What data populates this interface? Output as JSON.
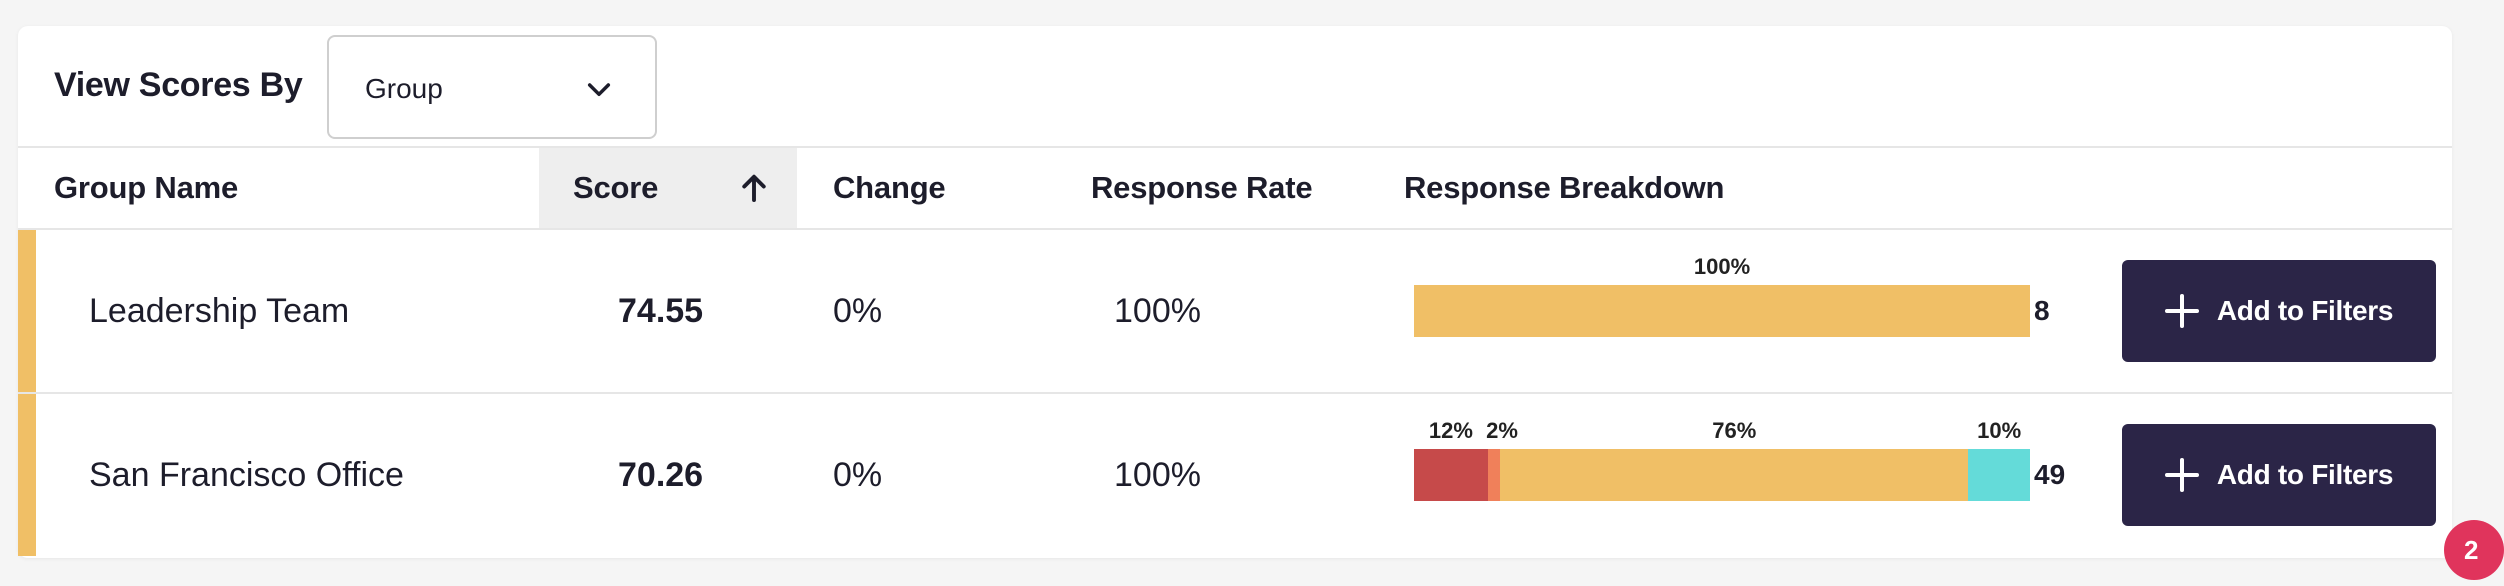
{
  "toolbar": {
    "title": "View Scores By",
    "dropdown": {
      "selected": "Group",
      "icon": "chevron-down-icon"
    }
  },
  "columns": {
    "group_name": "Group Name",
    "score": "Score",
    "change": "Change",
    "response_rate": "Response Rate",
    "response_breakdown": "Response Breakdown",
    "sort_icon": "arrow-up-icon"
  },
  "colors": {
    "accent_row": "#f0bf66",
    "unfavorable": "#c64a4a",
    "unfavorable_light": "#f0805a",
    "neutral": "#f0bf66",
    "favorable": "#64dbd9",
    "button_bg": "#2b2547",
    "badge": "#e0345c"
  },
  "rows": [
    {
      "name": "Leadership Team",
      "score": "74.55",
      "change": "0%",
      "response_rate": "100%",
      "count": "8",
      "button_label": "Add to Filters",
      "breakdown": [
        {
          "label": "100%",
          "value": 100,
          "color": "#f0bf66"
        }
      ]
    },
    {
      "name": "San Francisco Office",
      "score": "70.26",
      "change": "0%",
      "response_rate": "100%",
      "count": "49",
      "button_label": "Add to Filters",
      "breakdown": [
        {
          "label": "12%",
          "value": 12,
          "color": "#c64a4a"
        },
        {
          "label": "2%",
          "value": 2,
          "color": "#f0805a"
        },
        {
          "label": "76%",
          "value": 76,
          "color": "#f0bf66"
        },
        {
          "label": "10%",
          "value": 10,
          "color": "#64dbd9"
        }
      ]
    }
  ],
  "notification_badge": "2"
}
